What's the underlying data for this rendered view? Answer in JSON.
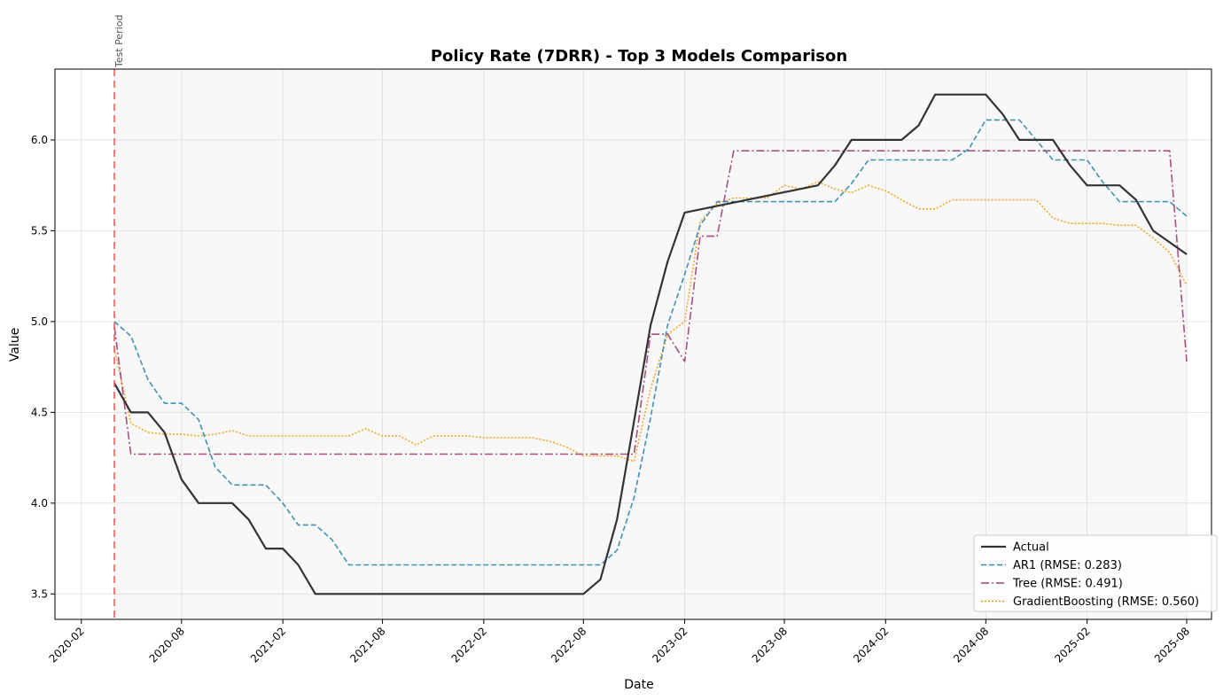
{
  "chart_data": {
    "type": "line",
    "title": "Policy Rate (7DRR) - Top 3 Models Comparison",
    "xlabel": "Date",
    "ylabel": "Value",
    "xlim": [
      "2019-12-15",
      "2025-09-15"
    ],
    "ylim": [
      3.36,
      6.39
    ],
    "grid": true,
    "legend_position": "lower-right",
    "x_ticks": [
      "2020-02",
      "2020-08",
      "2021-02",
      "2021-08",
      "2022-02",
      "2022-08",
      "2023-02",
      "2023-08",
      "2024-02",
      "2024-08",
      "2025-02",
      "2025-08"
    ],
    "y_ticks": [
      "3.5",
      "4.0",
      "4.5",
      "5.0",
      "5.5",
      "6.0"
    ],
    "annotation": {
      "label": "Test Period",
      "x": "2020-04-01",
      "color": "#e06666"
    },
    "test_period_shading": {
      "start": "2020-04-01",
      "end": "2025-08-01"
    },
    "series": [
      {
        "name": "Actual",
        "color": "#333333",
        "style": "solid",
        "x": [
          "2020-04-01",
          "2020-05-01",
          "2020-06-01",
          "2020-07-01",
          "2020-08-01",
          "2020-09-01",
          "2020-10-01",
          "2020-11-01",
          "2020-12-01",
          "2021-01-01",
          "2021-02-01",
          "2021-03-01",
          "2021-04-01",
          "2022-08-01",
          "2022-09-01",
          "2022-10-01",
          "2022-11-01",
          "2022-12-01",
          "2023-01-01",
          "2023-02-01",
          "2023-10-01",
          "2023-11-01",
          "2023-12-01",
          "2024-03-01",
          "2024-04-01",
          "2024-05-01",
          "2024-08-01",
          "2024-09-01",
          "2024-10-01",
          "2024-12-01",
          "2025-01-01",
          "2025-02-01",
          "2025-04-01",
          "2025-05-01",
          "2025-06-01",
          "2025-08-01"
        ],
        "y": [
          4.66,
          4.5,
          4.5,
          4.39,
          4.13,
          4.0,
          4.0,
          4.0,
          3.91,
          3.75,
          3.75,
          3.66,
          3.5,
          3.5,
          3.58,
          3.91,
          4.45,
          4.98,
          5.33,
          5.6,
          5.75,
          5.86,
          6.0,
          6.0,
          6.08,
          6.25,
          6.25,
          6.14,
          6.0,
          6.0,
          5.86,
          5.75,
          5.75,
          5.67,
          5.5,
          5.37
        ]
      },
      {
        "name": "AR1 (RMSE: 0.283)",
        "color": "#2e86ab",
        "style": "dashed",
        "x": [
          "2020-04-01",
          "2020-05-01",
          "2020-06-01",
          "2020-07-01",
          "2020-08-01",
          "2020-09-01",
          "2020-10-01",
          "2020-11-01",
          "2020-12-01",
          "2021-01-01",
          "2021-02-01",
          "2021-03-01",
          "2021-04-01",
          "2021-05-01",
          "2021-06-01",
          "2022-09-01",
          "2022-10-01",
          "2022-11-01",
          "2022-12-01",
          "2023-01-01",
          "2023-02-01",
          "2023-03-01",
          "2023-04-01",
          "2023-05-01",
          "2023-11-01",
          "2023-12-01",
          "2024-01-01",
          "2024-05-01",
          "2024-06-01",
          "2024-07-01",
          "2024-08-01",
          "2024-10-01",
          "2024-12-01",
          "2025-02-01",
          "2025-03-01",
          "2025-04-01",
          "2025-07-01",
          "2025-08-01"
        ],
        "y": [
          5.0,
          4.92,
          4.68,
          4.55,
          4.55,
          4.46,
          4.2,
          4.1,
          4.1,
          4.1,
          4.0,
          3.88,
          3.88,
          3.8,
          3.66,
          3.66,
          3.74,
          4.03,
          4.47,
          4.98,
          5.26,
          5.53,
          5.66,
          5.66,
          5.66,
          5.76,
          5.89,
          5.89,
          5.89,
          5.95,
          6.11,
          6.11,
          5.89,
          5.89,
          5.77,
          5.66,
          5.66,
          5.58
        ]
      },
      {
        "name": "Tree (RMSE: 0.491)",
        "color": "#a23b72",
        "style": "dashdot",
        "x": [
          "2020-04-01",
          "2020-05-01",
          "2022-11-01",
          "2022-12-01",
          "2023-01-01",
          "2023-02-01",
          "2023-03-01",
          "2023-04-01",
          "2023-05-01",
          "2023-06-01",
          "2025-07-01",
          "2025-08-01"
        ],
        "y": [
          4.97,
          4.27,
          4.27,
          4.93,
          4.93,
          4.78,
          5.47,
          5.47,
          5.94,
          5.94,
          5.94,
          4.78
        ]
      },
      {
        "name": "GradientBoosting (RMSE: 0.560)",
        "color": "#f39c12",
        "style": "dotted",
        "x": [
          "2020-04-01",
          "2020-05-01",
          "2020-06-01",
          "2020-07-01",
          "2020-08-01",
          "2020-09-01",
          "2020-10-01",
          "2020-11-01",
          "2020-12-01",
          "2021-01-01",
          "2021-02-01",
          "2021-03-01",
          "2021-04-01",
          "2021-05-01",
          "2021-06-01",
          "2021-07-01",
          "2021-08-01",
          "2021-09-01",
          "2021-10-01",
          "2021-11-01",
          "2021-12-01",
          "2022-01-01",
          "2022-02-01",
          "2022-03-01",
          "2022-04-01",
          "2022-05-01",
          "2022-06-01",
          "2022-07-01",
          "2022-08-01",
          "2022-09-01",
          "2022-10-01",
          "2022-11-01",
          "2022-12-01",
          "2023-01-01",
          "2023-02-01",
          "2023-03-01",
          "2023-04-01",
          "2023-05-01",
          "2023-06-01",
          "2023-07-01",
          "2023-08-01",
          "2023-09-01",
          "2023-10-01",
          "2023-11-01",
          "2023-12-01",
          "2024-01-01",
          "2024-02-01",
          "2024-03-01",
          "2024-04-01",
          "2024-05-01",
          "2024-06-01",
          "2024-07-01",
          "2024-08-01",
          "2024-09-01",
          "2024-10-01",
          "2024-11-01",
          "2024-12-01",
          "2025-01-01",
          "2025-02-01",
          "2025-03-01",
          "2025-04-01",
          "2025-05-01",
          "2025-06-01",
          "2025-07-01",
          "2025-08-01"
        ],
        "y": [
          4.85,
          4.44,
          4.39,
          4.38,
          4.38,
          4.37,
          4.38,
          4.4,
          4.37,
          4.37,
          4.37,
          4.37,
          4.37,
          4.37,
          4.37,
          4.41,
          4.37,
          4.37,
          4.32,
          4.37,
          4.37,
          4.37,
          4.36,
          4.36,
          4.36,
          4.36,
          4.34,
          4.31,
          4.26,
          4.26,
          4.26,
          4.23,
          4.63,
          4.93,
          5.0,
          5.55,
          5.65,
          5.68,
          5.68,
          5.68,
          5.75,
          5.73,
          5.77,
          5.73,
          5.71,
          5.75,
          5.72,
          5.67,
          5.62,
          5.62,
          5.67,
          5.67,
          5.67,
          5.67,
          5.67,
          5.67,
          5.57,
          5.54,
          5.54,
          5.54,
          5.53,
          5.53,
          5.46,
          5.38,
          5.2
        ]
      }
    ]
  }
}
